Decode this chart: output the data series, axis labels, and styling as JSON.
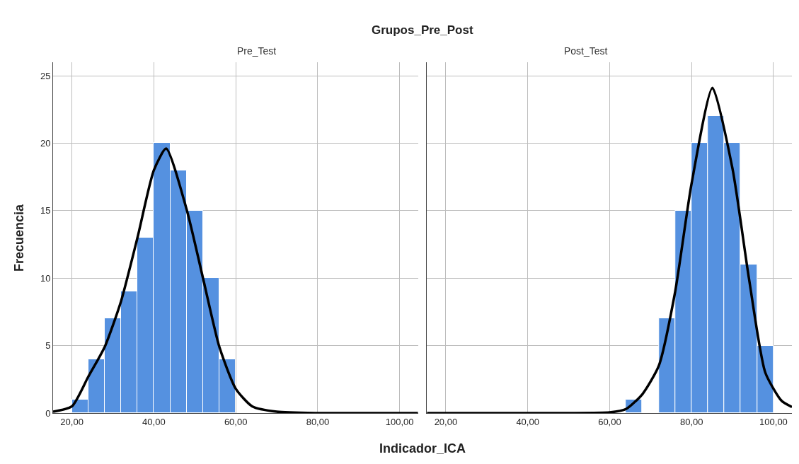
{
  "chart_data": [
    {
      "type": "histogram",
      "title": "Grupos_Pre_Post",
      "subtitle": "Pre_Test",
      "xlabel": "Indicador_ICA",
      "ylabel": "Frecuencia",
      "grid": true,
      "xlim": [
        15.4,
        104.5
      ],
      "xticks": [
        {
          "value": 20,
          "label": "20,00"
        },
        {
          "value": 40,
          "label": "40,00"
        },
        {
          "value": 60,
          "label": "60,00"
        },
        {
          "value": 80,
          "label": "80,00"
        },
        {
          "value": 100,
          "label": "100,00"
        }
      ],
      "ylim": [
        0,
        26
      ],
      "yticks": [
        0,
        5,
        10,
        15,
        20,
        25
      ],
      "series": [
        {
          "color": "#5591e0",
          "bins": [
            20,
            24,
            28,
            32,
            36,
            40,
            44,
            48,
            52,
            56,
            60
          ],
          "values": [
            1,
            4,
            7,
            9,
            13,
            20,
            18,
            15,
            10,
            4
          ]
        },
        {
          "type": "line",
          "color": "#000000",
          "x": [
            15.4,
            20,
            24,
            28,
            32,
            36,
            40,
            43,
            48,
            52,
            56,
            60,
            64,
            70,
            80,
            90,
            104.5
          ],
          "values": [
            0.1,
            0.5,
            2.7,
            4.9,
            8.3,
            13,
            18,
            19.6,
            15.1,
            10,
            4.9,
            1.8,
            0.5,
            0.1,
            0,
            0,
            0
          ]
        }
      ]
    },
    {
      "type": "histogram",
      "subtitle": "Post_Test",
      "grid": true,
      "tick_labels": "x",
      "xlim": [
        15.4,
        104.5
      ],
      "xticks": [
        {
          "value": 20,
          "label": "20,00"
        },
        {
          "value": 40,
          "label": "40,00"
        },
        {
          "value": 60,
          "label": "60,00"
        },
        {
          "value": 80,
          "label": "80,00"
        },
        {
          "value": 100,
          "label": "100,00"
        }
      ],
      "ylim": [
        0,
        26
      ],
      "yticks": [
        0,
        5,
        10,
        15,
        20,
        25
      ],
      "series": [
        {
          "color": "#5591e0",
          "bins": [
            64,
            68,
            72,
            76,
            80,
            84,
            88,
            92,
            96,
            100
          ],
          "values": [
            1,
            0,
            7,
            15,
            20,
            22,
            20,
            11,
            5
          ]
        },
        {
          "type": "line",
          "color": "#000000",
          "x": [
            15.4,
            30,
            40,
            50,
            60,
            64,
            68,
            72,
            76,
            80,
            85.1,
            90,
            94,
            98,
            102,
            104.5
          ],
          "values": [
            0,
            0,
            0,
            0,
            0.05,
            0.3,
            1.4,
            3.5,
            9,
            17,
            24.1,
            18.1,
            10,
            3,
            0.9,
            0.45
          ]
        }
      ]
    }
  ]
}
